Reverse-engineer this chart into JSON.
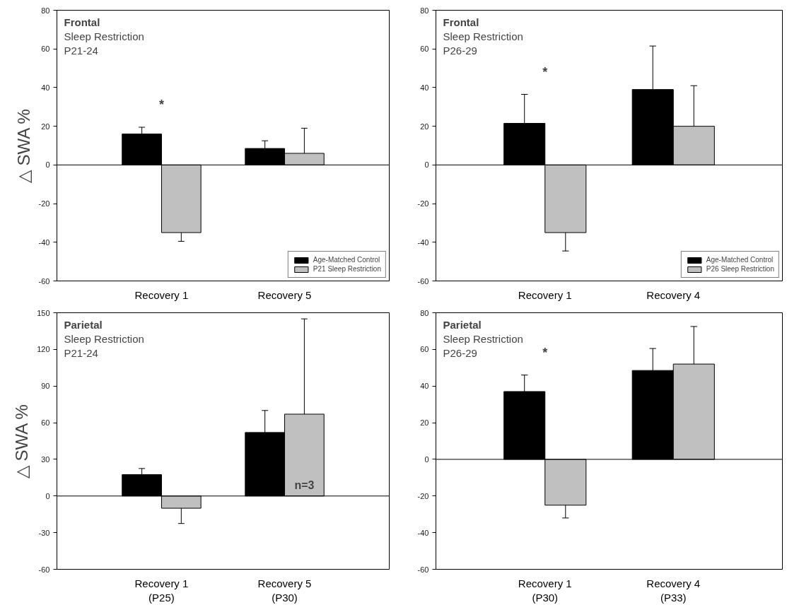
{
  "chart_data": [
    {
      "type": "bar",
      "title": "Frontal",
      "subtitle": "Sleep Restriction\nP21-24",
      "ylabel": "△ SWA %",
      "categories": [
        "Recovery 1",
        "Recovery 5"
      ],
      "ylim": [
        -60,
        80
      ],
      "yticks": [
        -60,
        -40,
        -20,
        0,
        20,
        40,
        60,
        80
      ],
      "legend": "bottom right",
      "grid": false,
      "series": [
        {
          "name": "Age-Matched Control",
          "color": "#000000",
          "values": [
            16,
            8.5
          ],
          "errors": [
            [
              16,
              19.5
            ],
            [
              8.5,
              12.5
            ]
          ]
        },
        {
          "name": "P21 Sleep Restriction",
          "color": "#c0c0c0",
          "values": [
            -35,
            6
          ],
          "errors": [
            [
              -39.5,
              -35
            ],
            [
              6,
              19
            ]
          ]
        }
      ],
      "ref_lines": [
        {
          "axis": "y",
          "value": 0
        }
      ],
      "annotations": [
        "*"
      ]
    },
    {
      "type": "bar",
      "title": "Frontal",
      "subtitle": "Sleep Restriction\nP26-29",
      "categories": [
        "Recovery 1",
        "Recovery 4"
      ],
      "ylim": [
        -60,
        80
      ],
      "yticks": [
        -60,
        -40,
        -20,
        0,
        20,
        40,
        60,
        80
      ],
      "legend": "bottom right",
      "grid": false,
      "series": [
        {
          "name": "Age-Matched Control",
          "color": "#000000",
          "values": [
            21.5,
            39
          ],
          "errors": [
            [
              21.5,
              36.5
            ],
            [
              39,
              61.5
            ]
          ]
        },
        {
          "name": "P26 Sleep Restriction",
          "color": "#c0c0c0",
          "values": [
            -35,
            20
          ],
          "errors": [
            [
              -44.5,
              -35
            ],
            [
              20,
              41
            ]
          ]
        }
      ],
      "ref_lines": [
        {
          "axis": "y",
          "value": 0
        }
      ],
      "annotations": [
        "*"
      ]
    },
    {
      "type": "bar",
      "title": "Parietal",
      "subtitle": "Sleep Restriction\nP21-24",
      "ylabel": "△ SWA %",
      "categories": [
        "Recovery 1\n(P25)",
        "Recovery 5\n(P30)"
      ],
      "ylim": [
        -60,
        150
      ],
      "yticks": [
        -60,
        -30,
        0,
        30,
        60,
        90,
        120,
        150
      ],
      "legend": false,
      "grid": false,
      "series": [
        {
          "color": "#000000",
          "values": [
            17.5,
            52
          ],
          "errors": [
            [
              17.5,
              22.5
            ],
            [
              52,
              70
            ]
          ]
        },
        {
          "color": "#c0c0c0",
          "values": [
            -10,
            67
          ],
          "errors": [
            [
              -22.5,
              -10
            ],
            [
              67,
              145
            ]
          ]
        }
      ],
      "ref_lines": [
        {
          "axis": "y",
          "value": 0
        }
      ],
      "annotations": [
        {
          "text": "n=3",
          "x": "Recovery 5\n(P30)",
          "y": 9
        }
      ]
    },
    {
      "type": "bar",
      "title": "Parietal",
      "subtitle": "Sleep Restriction\nP26-29",
      "categories": [
        "Recovery 1\n(P30)",
        "Recovery 4\n(P33)"
      ],
      "ylim": [
        -60,
        80
      ],
      "yticks": [
        -60,
        -40,
        -20,
        0,
        20,
        40,
        60,
        80
      ],
      "legend": false,
      "grid": false,
      "series": [
        {
          "color": "#000000",
          "values": [
            37,
            48.5
          ],
          "errors": [
            [
              37,
              46
            ],
            [
              48.5,
              60.5
            ]
          ]
        },
        {
          "color": "#c0c0c0",
          "values": [
            -25,
            52
          ],
          "errors": [
            [
              -32,
              -25
            ],
            [
              52,
              72.5
            ]
          ]
        }
      ],
      "ref_lines": [
        {
          "axis": "y",
          "value": 0
        }
      ],
      "annotations": [
        "*"
      ]
    }
  ]
}
